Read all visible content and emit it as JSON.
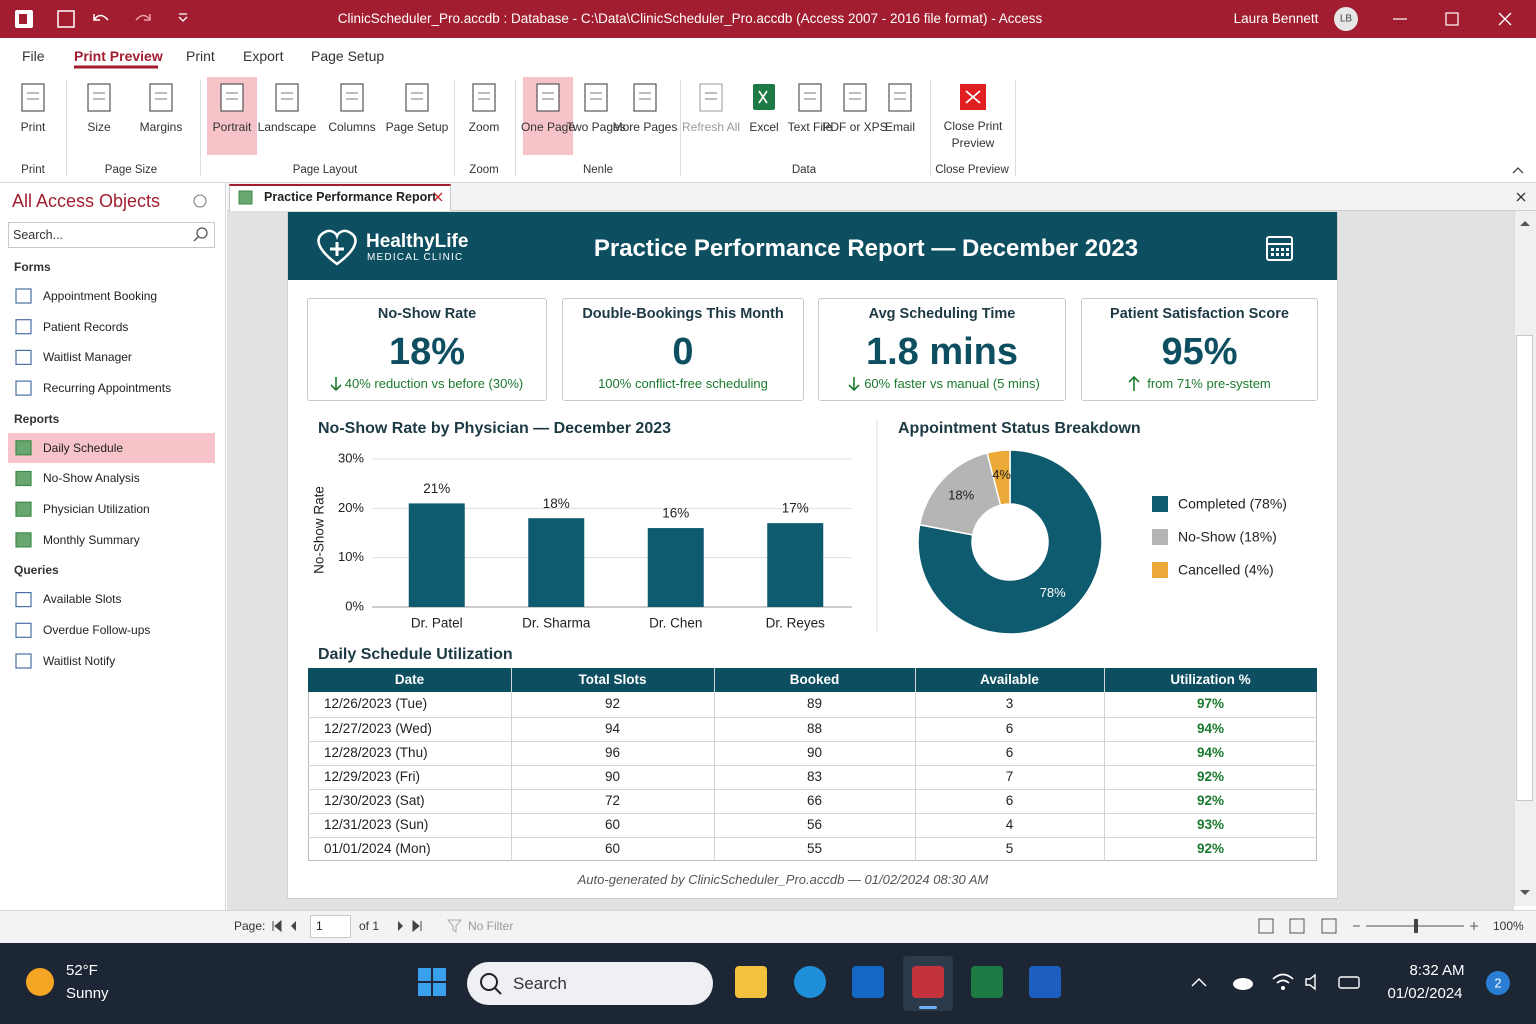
{
  "title_bar": {
    "title": "ClinicScheduler_Pro.accdb : Database - C:\\Data\\ClinicScheduler_Pro.accdb (Access 2007 - 2016 file format)  -  Access",
    "user": "Laura Bennett",
    "initials": "LB"
  },
  "ribbon": {
    "tabs": [
      "File",
      "Print Preview",
      "Print",
      "Export",
      "Page Setup"
    ],
    "groups": [
      {
        "label": "Print",
        "buttons": [
          "Print"
        ]
      },
      {
        "label": "Page Size",
        "buttons": [
          "Size",
          "Margins"
        ]
      },
      {
        "label": "Page Layout",
        "buttons": [
          "Portrait",
          "Landscape",
          "Columns",
          "Page Setup"
        ]
      },
      {
        "label": "Zoom",
        "buttons": [
          "Zoom"
        ]
      },
      {
        "label": "Nenle",
        "buttons": [
          "One Page",
          "Two Pages",
          "More Pages"
        ]
      },
      {
        "label": "Data",
        "buttons": [
          "Refresh All",
          "Excel",
          "Text File",
          "PDF or XPS",
          "Email"
        ]
      },
      {
        "label": "Close Preview",
        "buttons": [
          "Close Print Preview"
        ]
      }
    ]
  },
  "nav": {
    "title": "All Access Objects",
    "search": "Search...",
    "sections": [
      {
        "label": "Forms",
        "items": [
          "Appointment Booking",
          "Patient Records",
          "Waitlist Manager",
          "Recurring Appointments"
        ]
      },
      {
        "label": "Reports",
        "items": [
          "Daily Schedule",
          "No-Show Analysis",
          "Physician Utilization",
          "Monthly Summary"
        ]
      },
      {
        "label": "Queries",
        "items": [
          "Available Slots",
          "Overdue Follow-ups",
          "Waitlist Notify"
        ]
      }
    ]
  },
  "report": {
    "tab": "Practice Performance Report",
    "logo": {
      "name": "HealthyLife",
      "tagline": "MEDICAL CLINIC"
    },
    "title": "Practice Performance Report — December 2023",
    "kpis": [
      {
        "label": "No-Show Rate",
        "value": "18%",
        "note": "40% reduction vs before (30%)"
      },
      {
        "label": "Double-Bookings This Month",
        "value": "0",
        "note": "100% conflict-free scheduling"
      },
      {
        "label": "Avg Scheduling Time",
        "value": "1.8 mins",
        "note": "60% faster vs manual (5 mins)"
      },
      {
        "label": "Patient Satisfaction Score",
        "value": "95%",
        "note": "from 71% pre-system"
      }
    ],
    "table": {
      "title": "Daily Schedule Utilization",
      "columns": [
        "Date",
        "Total Slots",
        "Booked",
        "Available",
        "Utilization %"
      ],
      "rows": [
        [
          "12/26/2023 (Tue)",
          92,
          89,
          3,
          "97%"
        ],
        [
          "12/27/2023 (Wed)",
          94,
          88,
          6,
          "94%"
        ],
        [
          "12/28/2023 (Thu)",
          96,
          90,
          6,
          "94%"
        ],
        [
          "12/29/2023 (Fri)",
          90,
          83,
          7,
          "92%"
        ],
        [
          "12/30/2023 (Sat)",
          72,
          66,
          6,
          "92%"
        ],
        [
          "12/31/2023 (Sun)",
          60,
          56,
          4,
          "93%"
        ],
        [
          "01/01/2024 (Mon)",
          60,
          55,
          5,
          "92%"
        ]
      ]
    },
    "footer": "Auto-generated by ClinicScheduler_Pro.accdb — 01/02/2024 08:30 AM"
  },
  "chart_data": [
    {
      "type": "bar",
      "title": "No-Show Rate by Physician — December 2023",
      "y_label": "No-Show Rate",
      "categories": [
        "Dr. Patel",
        "Dr. Sharma",
        "Dr. Chen",
        "Dr. Reyes"
      ],
      "values": [
        21,
        18,
        16,
        17
      ],
      "value_labels": [
        "21%",
        "18%",
        "16%",
        "17%"
      ],
      "color": "#0e5a6e",
      "ylim": [
        0,
        30
      ],
      "yticks": [
        {
          "value": 0,
          "label": "0%"
        },
        {
          "value": 10,
          "label": "10%"
        },
        {
          "value": 20,
          "label": "20%"
        },
        {
          "value": 30,
          "label": "30%"
        }
      ],
      "grid": true
    },
    {
      "type": "pie",
      "title": "Appointment Status Breakdown",
      "donut": true,
      "categories": [
        "Completed (78%)",
        "No-Show (18%)",
        "Cancelled  (4%)"
      ],
      "values": [
        78,
        18,
        4
      ],
      "value_labels": [
        "78%",
        "18%",
        "4%"
      ],
      "colors": [
        "#0e5a6e",
        "#b5b5b5",
        "#eba937"
      ]
    }
  ],
  "status_bar": {
    "page_label": "Page:",
    "page": 1,
    "page_of": "of 1",
    "filter": "No Filter",
    "zoom": "100%"
  },
  "taskbar": {
    "temperature": "52°F",
    "weather": "Sunny",
    "search": "Search",
    "time": "8:32 AM",
    "date": "01/02/2024",
    "badge": 2
  }
}
